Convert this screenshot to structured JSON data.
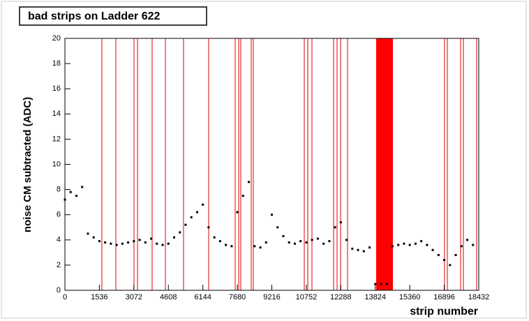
{
  "chart_data": {
    "type": "scatter",
    "title": "bad strips on Ladder 622",
    "xlabel": "strip number",
    "ylabel": "noise CM subtracted (ADC)",
    "xlim": [
      0,
      18432
    ],
    "ylim": [
      0,
      20
    ],
    "xticks": [
      0,
      1536,
      3072,
      4608,
      6144,
      7680,
      9216,
      10752,
      12288,
      13824,
      15360,
      16896,
      18432
    ],
    "yticks": [
      0,
      2,
      4,
      6,
      8,
      10,
      12,
      14,
      16,
      18,
      20
    ],
    "points": {
      "color": "#000000",
      "x": [
        0,
        256,
        512,
        768,
        1024,
        1280,
        1536,
        1792,
        2048,
        2304,
        2560,
        2816,
        3072,
        3328,
        3584,
        3840,
        4096,
        4352,
        4608,
        4864,
        5120,
        5376,
        5632,
        5888,
        6144,
        6400,
        6656,
        6912,
        7168,
        7424,
        7680,
        7936,
        8192,
        8448,
        8704,
        8960,
        9216,
        9472,
        9728,
        9984,
        10240,
        10496,
        10752,
        11008,
        11264,
        11520,
        11776,
        12032,
        12288,
        12544,
        12800,
        13056,
        13312,
        13568,
        13824,
        14080,
        14336,
        14592,
        14848,
        15104,
        15360,
        15616,
        15872,
        16128,
        16384,
        16640,
        16896,
        17152,
        17408,
        17664,
        17920,
        18176
      ],
      "y": [
        7.2,
        7.8,
        7.5,
        8.2,
        4.5,
        4.2,
        3.9,
        3.8,
        3.7,
        3.6,
        3.7,
        3.8,
        3.9,
        4.0,
        3.8,
        4.1,
        3.7,
        3.6,
        3.7,
        4.2,
        4.6,
        5.2,
        5.8,
        6.2,
        6.8,
        5.0,
        4.2,
        3.9,
        3.6,
        3.5,
        6.2,
        7.5,
        8.6,
        3.5,
        3.4,
        3.8,
        6.0,
        5.0,
        4.3,
        3.8,
        3.7,
        3.9,
        3.8,
        4.0,
        4.1,
        3.7,
        3.9,
        5.0,
        5.4,
        4.0,
        3.3,
        3.2,
        3.1,
        3.4,
        0.5,
        0.5,
        0.5,
        3.5,
        3.6,
        3.7,
        3.6,
        3.7,
        3.9,
        3.6,
        3.2,
        2.8,
        2.4,
        2.0,
        2.8,
        3.5,
        4.0,
        3.6
      ]
    },
    "bad_strips": {
      "color": "#e00000",
      "x": [
        1647,
        2269,
        3077,
        3233,
        3885,
        4476,
        5284,
        6403,
        7584,
        7740,
        7833,
        8299,
        8392,
        10661,
        10817,
        11003,
        11967,
        12122,
        12277,
        12588,
        16908,
        17033,
        17623,
        17748,
        18339
      ]
    },
    "bad_range": {
      "color": "#ff0000",
      "x": [
        13862,
        14608
      ]
    }
  }
}
